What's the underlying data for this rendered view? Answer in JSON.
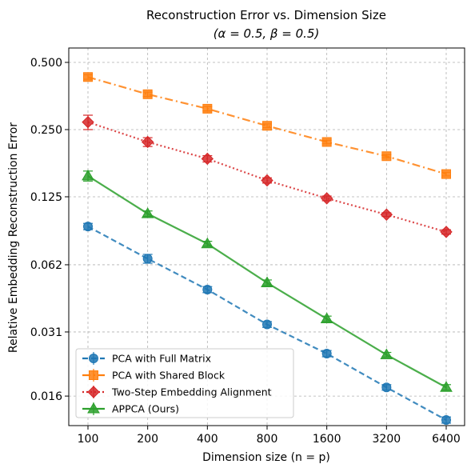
{
  "chart_data": {
    "type": "line",
    "title": "Reconstruction Error vs. Dimension Size",
    "subtitle": "(α = 0.5, β = 0.5)",
    "xlabel": "Dimension size (n = p)",
    "ylabel": "Relative Embedding Reconstruction Error",
    "x_scale": "log2",
    "y_scale": "log",
    "x": [
      100,
      200,
      400,
      800,
      1600,
      3200,
      6400
    ],
    "x_tick_labels": [
      "100",
      "200",
      "400",
      "800",
      "1600",
      "3200",
      "6400"
    ],
    "y_ticks": [
      0.016,
      0.031,
      0.062,
      0.125,
      0.25,
      0.5
    ],
    "y_tick_labels": [
      "0.016",
      "0.031",
      "0.062",
      "0.125",
      "0.250",
      "0.500"
    ],
    "ylim": [
      0.0118,
      0.58
    ],
    "grid": true,
    "legend_position": "lower-left",
    "series": [
      {
        "name": "PCA with Full Matrix",
        "color": "#1f77b4",
        "marker": "circle",
        "line_style": "dashed",
        "values": [
          0.092,
          0.066,
          0.048,
          0.0335,
          0.0248,
          0.0175,
          0.0125
        ],
        "errors": [
          0.003,
          0.003,
          0.0015,
          0.001,
          0.0008,
          0.0005,
          0.0004
        ]
      },
      {
        "name": "PCA with Shared Block",
        "color": "#ff7f0e",
        "marker": "square",
        "line_style": "dashdot",
        "values": [
          0.43,
          0.36,
          0.31,
          0.26,
          0.22,
          0.19,
          0.158
        ],
        "errors": [
          0.01,
          0.008,
          0.007,
          0.005,
          0.004,
          0.003,
          0.003
        ]
      },
      {
        "name": "Two-Step Embedding Alignment",
        "color": "#d62728",
        "marker": "diamond",
        "line_style": "dotted",
        "values": [
          0.27,
          0.22,
          0.185,
          0.148,
          0.123,
          0.104,
          0.087
        ],
        "errors": [
          0.02,
          0.01,
          0.006,
          0.004,
          0.003,
          0.002,
          0.002
        ]
      },
      {
        "name": "APPCA (Ours)",
        "color": "#2ca02c",
        "marker": "triangle",
        "line_style": "solid",
        "values": [
          0.155,
          0.105,
          0.077,
          0.0515,
          0.0355,
          0.0245,
          0.0175
        ],
        "errors": [
          0.008,
          0.003,
          0.002,
          0.0015,
          0.001,
          0.0006,
          0.0005
        ]
      }
    ]
  }
}
